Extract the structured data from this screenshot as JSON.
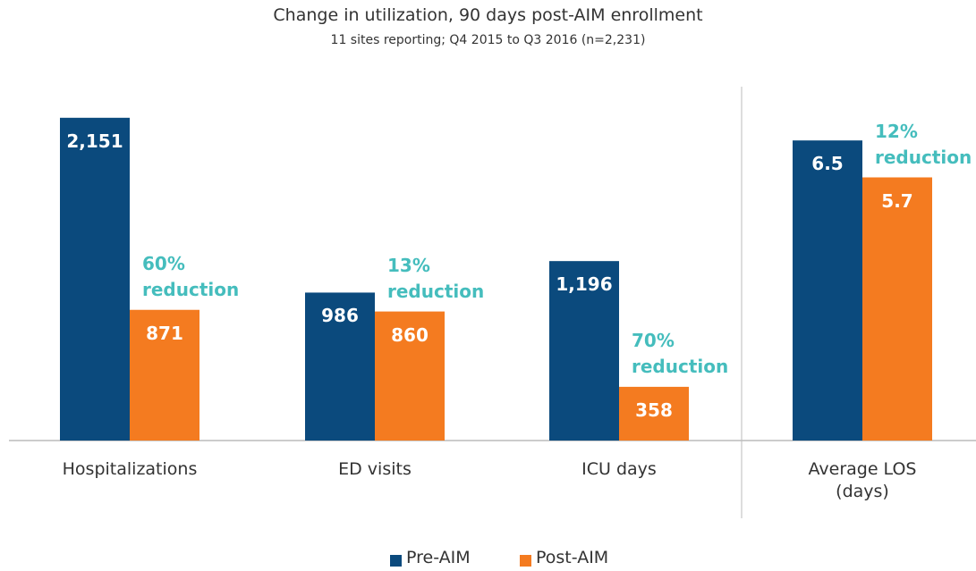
{
  "chart_data": [
    {
      "type": "bar",
      "title": "Change in utilization, 90 days post-AIM enrollment",
      "subtitle": "11 sites reporting; Q4 2015 to Q3 2016 (n=2,231)",
      "categories": [
        "Hospitalizations",
        "ED visits",
        "ICU days"
      ],
      "series": [
        {
          "name": "Pre-AIM",
          "color": "#0b4a7d",
          "values": [
            2151,
            986,
            1196
          ],
          "value_labels": [
            "2,151",
            "986",
            "1,196"
          ]
        },
        {
          "name": "Post-AIM",
          "color": "#f47b20",
          "values": [
            871,
            860,
            358
          ],
          "value_labels": [
            "871",
            "860",
            "358"
          ]
        }
      ],
      "annotations": [
        "60% reduction",
        "13% reduction",
        "70% reduction"
      ],
      "ylim": [
        0,
        2400
      ]
    },
    {
      "type": "bar",
      "categories": [
        "Average LOS (days)"
      ],
      "series": [
        {
          "color": "#0b4a7d",
          "values": [
            6.5
          ]
        },
        {
          "color": "#f47b20",
          "values": [
            5.7
          ]
        }
      ],
      "annotations": [
        "12% reduction"
      ],
      "ylim": [
        0,
        7.8
      ]
    }
  ]
}
